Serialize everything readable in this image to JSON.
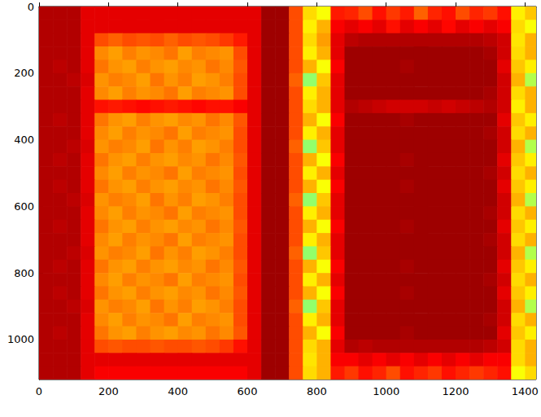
{
  "chart_data": {
    "type": "heatmap",
    "xlim": [
      0,
      1432
    ],
    "ylim": [
      1120,
      0
    ],
    "xticks": [
      0,
      200,
      400,
      600,
      800,
      1000,
      1200,
      1400
    ],
    "yticks": [
      0,
      200,
      400,
      600,
      800,
      1000
    ],
    "grid": false,
    "tick_labels": true,
    "color_range": [
      0,
      1
    ],
    "x_edges": [
      0,
      40,
      80,
      120,
      160,
      200,
      240,
      280,
      320,
      360,
      400,
      440,
      480,
      520,
      560,
      600,
      640,
      680,
      720,
      760,
      800,
      840,
      880,
      920,
      960,
      1000,
      1040,
      1080,
      1120,
      1160,
      1200,
      1240,
      1280,
      1320,
      1360,
      1400,
      1440
    ],
    "y_edges": [
      0,
      40,
      80,
      120,
      160,
      200,
      240,
      280,
      320,
      360,
      400,
      440,
      480,
      520,
      560,
      600,
      640,
      680,
      720,
      760,
      800,
      840,
      880,
      920,
      960,
      1000,
      1040,
      1080,
      1120
    ],
    "cells": [
      [
        0.95,
        0.95,
        0.95,
        0.9,
        0.9,
        0.9,
        0.9,
        0.9,
        0.9,
        0.9,
        0.9,
        0.9,
        0.9,
        0.9,
        0.9,
        0.9,
        0.97,
        0.97,
        0.8,
        0.66,
        0.62,
        0.85,
        0.84,
        0.8,
        0.86,
        0.82,
        0.85,
        0.78,
        0.84,
        0.86,
        0.8,
        0.84,
        0.82,
        0.86,
        0.64,
        0.68
      ],
      [
        0.95,
        0.95,
        0.95,
        0.9,
        0.9,
        0.9,
        0.9,
        0.9,
        0.9,
        0.9,
        0.9,
        0.9,
        0.9,
        0.9,
        0.9,
        0.9,
        0.97,
        0.97,
        0.8,
        0.64,
        0.7,
        0.88,
        0.9,
        0.88,
        0.9,
        0.86,
        0.9,
        0.88,
        0.9,
        0.87,
        0.9,
        0.88,
        0.9,
        0.88,
        0.66,
        0.62
      ],
      [
        0.95,
        0.95,
        0.95,
        0.9,
        0.8,
        0.78,
        0.8,
        0.79,
        0.8,
        0.78,
        0.8,
        0.79,
        0.8,
        0.82,
        0.85,
        0.9,
        0.97,
        0.97,
        0.8,
        0.66,
        0.72,
        0.9,
        0.94,
        0.95,
        0.95,
        0.95,
        0.95,
        0.95,
        0.95,
        0.95,
        0.95,
        0.95,
        0.94,
        0.92,
        0.65,
        0.7
      ],
      [
        0.95,
        0.95,
        0.95,
        0.9,
        0.74,
        0.72,
        0.75,
        0.73,
        0.74,
        0.76,
        0.72,
        0.75,
        0.74,
        0.73,
        0.8,
        0.9,
        0.97,
        0.97,
        0.8,
        0.64,
        0.7,
        0.9,
        0.97,
        0.97,
        0.97,
        0.97,
        0.97,
        0.97,
        0.97,
        0.97,
        0.97,
        0.97,
        0.96,
        0.92,
        0.66,
        0.7
      ],
      [
        0.95,
        0.94,
        0.95,
        0.9,
        0.76,
        0.73,
        0.72,
        0.75,
        0.73,
        0.72,
        0.74,
        0.73,
        0.76,
        0.74,
        0.79,
        0.9,
        0.97,
        0.97,
        0.8,
        0.7,
        0.62,
        0.88,
        0.97,
        0.97,
        0.97,
        0.97,
        0.96,
        0.97,
        0.97,
        0.97,
        0.97,
        0.97,
        0.97,
        0.9,
        0.68,
        0.64
      ],
      [
        0.95,
        0.95,
        0.94,
        0.91,
        0.73,
        0.75,
        0.74,
        0.72,
        0.76,
        0.73,
        0.75,
        0.72,
        0.73,
        0.75,
        0.8,
        0.9,
        0.97,
        0.97,
        0.78,
        0.52,
        0.68,
        0.9,
        0.97,
        0.97,
        0.97,
        0.97,
        0.97,
        0.97,
        0.97,
        0.97,
        0.97,
        0.97,
        0.97,
        0.92,
        0.7,
        0.55
      ],
      [
        0.95,
        0.95,
        0.95,
        0.9,
        0.74,
        0.72,
        0.75,
        0.73,
        0.74,
        0.76,
        0.72,
        0.75,
        0.74,
        0.73,
        0.8,
        0.9,
        0.97,
        0.97,
        0.8,
        0.64,
        0.7,
        0.9,
        0.97,
        0.97,
        0.97,
        0.97,
        0.97,
        0.97,
        0.97,
        0.97,
        0.97,
        0.97,
        0.96,
        0.92,
        0.66,
        0.7
      ],
      [
        0.95,
        0.95,
        0.95,
        0.9,
        0.86,
        0.85,
        0.86,
        0.87,
        0.86,
        0.85,
        0.86,
        0.87,
        0.86,
        0.86,
        0.88,
        0.9,
        0.97,
        0.97,
        0.8,
        0.66,
        0.7,
        0.9,
        0.95,
        0.94,
        0.93,
        0.92,
        0.92,
        0.92,
        0.93,
        0.92,
        0.93,
        0.94,
        0.95,
        0.92,
        0.64,
        0.7
      ],
      [
        0.95,
        0.94,
        0.95,
        0.9,
        0.76,
        0.73,
        0.72,
        0.75,
        0.73,
        0.72,
        0.74,
        0.73,
        0.76,
        0.74,
        0.79,
        0.9,
        0.97,
        0.97,
        0.8,
        0.7,
        0.62,
        0.88,
        0.97,
        0.97,
        0.97,
        0.97,
        0.96,
        0.97,
        0.97,
        0.97,
        0.97,
        0.97,
        0.97,
        0.9,
        0.68,
        0.64
      ],
      [
        0.95,
        0.95,
        0.95,
        0.9,
        0.74,
        0.72,
        0.75,
        0.73,
        0.74,
        0.76,
        0.72,
        0.75,
        0.74,
        0.73,
        0.8,
        0.9,
        0.97,
        0.97,
        0.8,
        0.64,
        0.7,
        0.9,
        0.97,
        0.97,
        0.97,
        0.97,
        0.97,
        0.97,
        0.97,
        0.97,
        0.97,
        0.97,
        0.96,
        0.92,
        0.66,
        0.7
      ],
      [
        0.95,
        0.95,
        0.94,
        0.91,
        0.73,
        0.75,
        0.74,
        0.72,
        0.76,
        0.73,
        0.75,
        0.72,
        0.73,
        0.75,
        0.8,
        0.9,
        0.97,
        0.97,
        0.78,
        0.52,
        0.68,
        0.9,
        0.97,
        0.97,
        0.97,
        0.97,
        0.97,
        0.97,
        0.97,
        0.97,
        0.97,
        0.97,
        0.97,
        0.92,
        0.7,
        0.55
      ],
      [
        0.95,
        0.94,
        0.95,
        0.9,
        0.76,
        0.73,
        0.72,
        0.75,
        0.73,
        0.72,
        0.74,
        0.73,
        0.76,
        0.74,
        0.79,
        0.9,
        0.97,
        0.97,
        0.8,
        0.7,
        0.62,
        0.88,
        0.97,
        0.97,
        0.97,
        0.97,
        0.96,
        0.97,
        0.97,
        0.97,
        0.97,
        0.97,
        0.97,
        0.9,
        0.68,
        0.64
      ],
      [
        0.95,
        0.95,
        0.95,
        0.9,
        0.74,
        0.72,
        0.75,
        0.73,
        0.74,
        0.76,
        0.72,
        0.75,
        0.74,
        0.73,
        0.8,
        0.9,
        0.97,
        0.97,
        0.8,
        0.64,
        0.7,
        0.9,
        0.97,
        0.97,
        0.97,
        0.97,
        0.97,
        0.97,
        0.97,
        0.97,
        0.97,
        0.97,
        0.96,
        0.92,
        0.66,
        0.7
      ],
      [
        0.95,
        0.94,
        0.95,
        0.9,
        0.76,
        0.73,
        0.72,
        0.75,
        0.73,
        0.72,
        0.74,
        0.73,
        0.76,
        0.74,
        0.79,
        0.9,
        0.97,
        0.97,
        0.8,
        0.7,
        0.62,
        0.88,
        0.97,
        0.97,
        0.97,
        0.97,
        0.96,
        0.97,
        0.97,
        0.97,
        0.97,
        0.97,
        0.97,
        0.9,
        0.68,
        0.64
      ],
      [
        0.95,
        0.95,
        0.94,
        0.91,
        0.73,
        0.75,
        0.74,
        0.72,
        0.76,
        0.73,
        0.75,
        0.72,
        0.73,
        0.75,
        0.8,
        0.9,
        0.97,
        0.97,
        0.78,
        0.52,
        0.68,
        0.9,
        0.97,
        0.97,
        0.97,
        0.97,
        0.97,
        0.97,
        0.97,
        0.97,
        0.97,
        0.97,
        0.97,
        0.92,
        0.7,
        0.55
      ],
      [
        0.95,
        0.95,
        0.95,
        0.9,
        0.74,
        0.72,
        0.75,
        0.73,
        0.74,
        0.76,
        0.72,
        0.75,
        0.74,
        0.73,
        0.8,
        0.9,
        0.97,
        0.97,
        0.8,
        0.64,
        0.7,
        0.9,
        0.97,
        0.97,
        0.97,
        0.97,
        0.97,
        0.97,
        0.97,
        0.97,
        0.97,
        0.97,
        0.96,
        0.92,
        0.66,
        0.7
      ],
      [
        0.95,
        0.94,
        0.95,
        0.9,
        0.76,
        0.73,
        0.72,
        0.75,
        0.73,
        0.72,
        0.74,
        0.73,
        0.76,
        0.74,
        0.79,
        0.9,
        0.97,
        0.97,
        0.8,
        0.7,
        0.62,
        0.88,
        0.97,
        0.97,
        0.97,
        0.97,
        0.96,
        0.97,
        0.97,
        0.97,
        0.97,
        0.97,
        0.97,
        0.9,
        0.68,
        0.64
      ],
      [
        0.95,
        0.95,
        0.95,
        0.9,
        0.74,
        0.72,
        0.75,
        0.73,
        0.74,
        0.76,
        0.72,
        0.75,
        0.74,
        0.73,
        0.8,
        0.9,
        0.97,
        0.97,
        0.8,
        0.64,
        0.7,
        0.9,
        0.97,
        0.97,
        0.97,
        0.97,
        0.97,
        0.97,
        0.97,
        0.97,
        0.97,
        0.97,
        0.96,
        0.92,
        0.66,
        0.7
      ],
      [
        0.95,
        0.95,
        0.94,
        0.91,
        0.73,
        0.75,
        0.74,
        0.72,
        0.76,
        0.73,
        0.75,
        0.72,
        0.73,
        0.75,
        0.8,
        0.9,
        0.97,
        0.97,
        0.78,
        0.52,
        0.68,
        0.9,
        0.97,
        0.97,
        0.97,
        0.97,
        0.97,
        0.97,
        0.97,
        0.97,
        0.97,
        0.97,
        0.97,
        0.92,
        0.7,
        0.55
      ],
      [
        0.95,
        0.94,
        0.95,
        0.9,
        0.76,
        0.73,
        0.72,
        0.75,
        0.73,
        0.72,
        0.74,
        0.73,
        0.76,
        0.74,
        0.79,
        0.9,
        0.97,
        0.97,
        0.8,
        0.7,
        0.62,
        0.88,
        0.97,
        0.97,
        0.97,
        0.97,
        0.96,
        0.97,
        0.97,
        0.97,
        0.97,
        0.97,
        0.97,
        0.9,
        0.68,
        0.64
      ],
      [
        0.95,
        0.95,
        0.95,
        0.9,
        0.74,
        0.72,
        0.75,
        0.73,
        0.74,
        0.76,
        0.72,
        0.75,
        0.74,
        0.73,
        0.8,
        0.9,
        0.97,
        0.97,
        0.8,
        0.64,
        0.7,
        0.9,
        0.97,
        0.97,
        0.97,
        0.97,
        0.97,
        0.97,
        0.97,
        0.97,
        0.97,
        0.97,
        0.96,
        0.92,
        0.66,
        0.7
      ],
      [
        0.95,
        0.94,
        0.95,
        0.9,
        0.76,
        0.73,
        0.72,
        0.75,
        0.73,
        0.72,
        0.74,
        0.73,
        0.76,
        0.74,
        0.79,
        0.9,
        0.97,
        0.97,
        0.8,
        0.7,
        0.62,
        0.88,
        0.97,
        0.97,
        0.97,
        0.97,
        0.96,
        0.97,
        0.97,
        0.97,
        0.97,
        0.97,
        0.97,
        0.9,
        0.68,
        0.64
      ],
      [
        0.95,
        0.95,
        0.94,
        0.91,
        0.73,
        0.75,
        0.74,
        0.72,
        0.76,
        0.73,
        0.75,
        0.72,
        0.73,
        0.75,
        0.8,
        0.9,
        0.97,
        0.97,
        0.78,
        0.52,
        0.68,
        0.9,
        0.97,
        0.97,
        0.97,
        0.97,
        0.97,
        0.97,
        0.97,
        0.97,
        0.97,
        0.97,
        0.97,
        0.92,
        0.7,
        0.55
      ],
      [
        0.95,
        0.95,
        0.95,
        0.9,
        0.74,
        0.72,
        0.75,
        0.73,
        0.74,
        0.76,
        0.72,
        0.75,
        0.74,
        0.73,
        0.8,
        0.9,
        0.97,
        0.97,
        0.8,
        0.64,
        0.7,
        0.9,
        0.97,
        0.97,
        0.97,
        0.97,
        0.97,
        0.97,
        0.97,
        0.97,
        0.97,
        0.97,
        0.96,
        0.92,
        0.66,
        0.7
      ],
      [
        0.95,
        0.94,
        0.95,
        0.9,
        0.76,
        0.73,
        0.72,
        0.75,
        0.73,
        0.72,
        0.74,
        0.73,
        0.76,
        0.74,
        0.79,
        0.9,
        0.97,
        0.97,
        0.8,
        0.7,
        0.62,
        0.88,
        0.97,
        0.97,
        0.97,
        0.97,
        0.96,
        0.97,
        0.97,
        0.97,
        0.97,
        0.97,
        0.97,
        0.9,
        0.68,
        0.64
      ],
      [
        0.95,
        0.95,
        0.95,
        0.9,
        0.8,
        0.79,
        0.8,
        0.8,
        0.79,
        0.8,
        0.8,
        0.79,
        0.8,
        0.82,
        0.86,
        0.9,
        0.97,
        0.97,
        0.8,
        0.66,
        0.7,
        0.9,
        0.95,
        0.94,
        0.95,
        0.95,
        0.95,
        0.95,
        0.95,
        0.95,
        0.95,
        0.95,
        0.94,
        0.92,
        0.66,
        0.7
      ],
      [
        0.95,
        0.95,
        0.95,
        0.9,
        0.9,
        0.9,
        0.9,
        0.9,
        0.9,
        0.9,
        0.9,
        0.9,
        0.9,
        0.9,
        0.9,
        0.9,
        0.97,
        0.97,
        0.8,
        0.65,
        0.7,
        0.88,
        0.88,
        0.9,
        0.88,
        0.9,
        0.88,
        0.9,
        0.88,
        0.9,
        0.88,
        0.9,
        0.88,
        0.88,
        0.66,
        0.7
      ],
      [
        0.95,
        0.95,
        0.95,
        0.9,
        0.88,
        0.88,
        0.88,
        0.88,
        0.88,
        0.88,
        0.88,
        0.88,
        0.88,
        0.88,
        0.88,
        0.9,
        0.97,
        0.97,
        0.8,
        0.66,
        0.7,
        0.85,
        0.82,
        0.86,
        0.84,
        0.8,
        0.86,
        0.84,
        0.82,
        0.86,
        0.84,
        0.82,
        0.84,
        0.86,
        0.62,
        0.66
      ]
    ]
  }
}
